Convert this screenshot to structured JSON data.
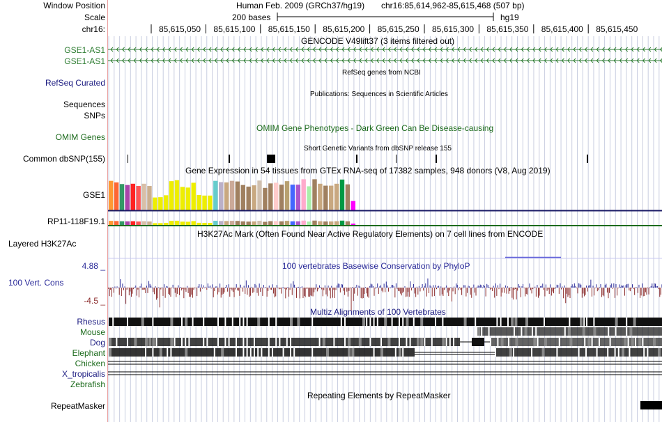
{
  "labels": {
    "window_position": "Window Position",
    "scale": "Scale",
    "chrom": "chr16:",
    "gse1_as1_a": "GSE1-AS1",
    "gse1_as1_b": "GSE1-AS1",
    "refseq_curated": "RefSeq Curated",
    "sequences": "Sequences",
    "snps": "SNPs",
    "omim_genes": "OMIM Genes",
    "common_dbsnp": "Common dbSNP(155)",
    "gse1": "GSE1",
    "rp11": "RP11-118F19.1",
    "layered_h3k27ac": "Layered H3K27Ac",
    "phylop_max": "4.88 _",
    "vert_cons": "100 Vert. Cons",
    "phylop_min": "-4.5 _",
    "rhesus": "Rhesus",
    "mouse": "Mouse",
    "dog": "Dog",
    "elephant": "Elephant",
    "chicken": "Chicken",
    "x_tropicalis": "X_tropicalis",
    "zebrafish": "Zebrafish",
    "repeatmasker": "RepeatMasker"
  },
  "header": {
    "assembly": "Human Feb. 2009 (GRCh37/hg19)",
    "position": "chr16:85,614,962-85,615,468 (507 bp)",
    "scale_text": "200 bases",
    "scale_db": "hg19"
  },
  "ruler_ticks": [
    "85,615,050",
    "85,615,100",
    "85,615,150",
    "85,615,200",
    "85,615,250",
    "85,615,300",
    "85,615,350",
    "85,615,400",
    "85,615,450"
  ],
  "track_titles": {
    "gencode": "GENCODE V49lift37 (3 items filtered out)",
    "refseq": "RefSeq genes from NCBI",
    "publications": "Publications: Sequences in Scientific Articles",
    "omim": "OMIM Gene Phenotypes - Dark Green Can Be Disease-causing",
    "dbsnp": "Short Genetic Variants from dbSNP release 155",
    "gtex": "Gene Expression in 54 tissues from GTEx RNA-seq of 17382 samples, 948 donors (V8, Aug 2019)",
    "h3k27ac": "H3K27Ac Mark (Often Found Near Active Regulatory Elements) on 7 cell lines from ENCODE",
    "phylop": "100 vertebrates Basewise Conservation by PhyloP",
    "multiz": "Multiz Alignments of 100 Vertebrates",
    "repeatmasker": "Repeating Elements by RepeatMasker"
  },
  "colors": {
    "gencode_green": "#2e7d32",
    "refseq_blue": "#1a1a80",
    "omim_green": "#1d6b1d",
    "phylop_blue": "#2a2a99",
    "phylop_red": "#8b2a2a",
    "grid_line": "#c8cde0",
    "label_divider": "#ea9e9e",
    "gtex_baseline": "#1a1a66",
    "rp11_baseline": "#1d6b1d",
    "h3k27ac_line": "#5a5ad8"
  },
  "gtex_tissue_colors": [
    "#ff9933",
    "#ff6633",
    "#339966",
    "#aa44aa",
    "#ff2222",
    "#ff5555",
    "#d8bfa8",
    "#ccb090",
    "#eeee00",
    "#eeee00",
    "#eeee00",
    "#eeee00",
    "#eeee00",
    "#eeee00",
    "#eeee00",
    "#eeee00",
    "#eeee00",
    "#eeee00",
    "#eeee00",
    "#66cccc",
    "#bbb0c8",
    "#c8a880",
    "#ccaa99",
    "#a08060",
    "#a08060",
    "#a08060",
    "#c8a880",
    "#d0c0b0",
    "#a08060",
    "#a08060",
    "#ffcccc",
    "#a08060",
    "#b8a070",
    "#4466ff",
    "#aa55cc",
    "#ffaacc",
    "#aaeeaa",
    "#a08060",
    "#c8a880",
    "#a08060",
    "#c8a880",
    "#c8a880",
    "#009944",
    "#a08060",
    "#ff00ff"
  ],
  "gtex_values": [
    0.92,
    0.87,
    0.82,
    0.79,
    0.83,
    0.76,
    0.83,
    0.76,
    0.4,
    0.41,
    0.47,
    0.91,
    0.94,
    0.73,
    0.71,
    0.86,
    0.48,
    0.46,
    0.46,
    0.92,
    0.88,
    0.87,
    0.92,
    0.9,
    0.79,
    0.74,
    0.78,
    0.93,
    0.7,
    0.84,
    0.86,
    0.8,
    0.91,
    0.8,
    0.8,
    0.97,
    0.75,
    0.97,
    0.83,
    0.77,
    0.77,
    0.83,
    0.96,
    0.81,
    0.29
  ],
  "rp11_scale": 0.14,
  "phylop": {
    "max": 4.88,
    "min": -4.5
  },
  "dbsnp_marks": [
    {
      "pos": 28,
      "width": 1
    },
    {
      "pos": 173,
      "width": 2
    },
    {
      "pos": 228,
      "width": 12
    },
    {
      "pos": 356,
      "width": 2
    },
    {
      "pos": 413,
      "width": 1
    },
    {
      "pos": 470,
      "width": 2
    },
    {
      "pos": 687,
      "width": 2
    }
  ]
}
